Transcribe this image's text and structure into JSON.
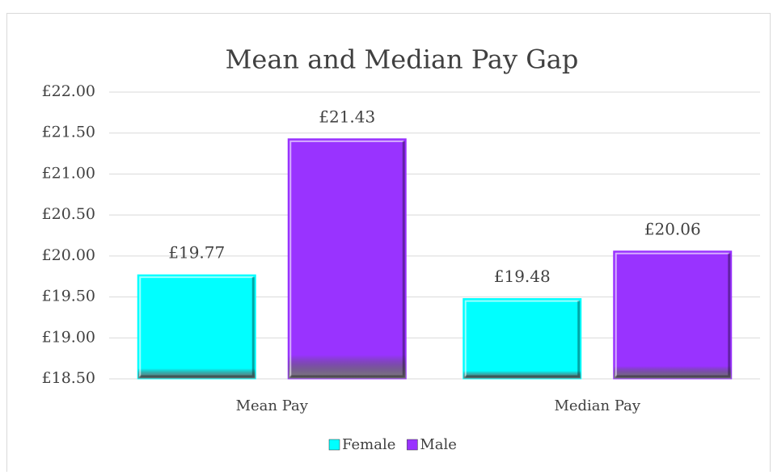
{
  "chart_data": {
    "type": "bar",
    "title": "Mean and Median Pay Gap",
    "categories": [
      "Mean Pay",
      "Median Pay"
    ],
    "series": [
      {
        "name": "Female",
        "color": "#00ffff",
        "values": [
          19.77,
          19.48
        ],
        "value_labels": [
          "£19.77",
          "£19.48"
        ]
      },
      {
        "name": "Male",
        "color": "#9933ff",
        "values": [
          21.43,
          20.06
        ],
        "value_labels": [
          "£21.43",
          "£20.06"
        ]
      }
    ],
    "ylim": [
      18.5,
      22
    ],
    "yticks": [
      {
        "value": 18.5,
        "label": "£18.50"
      },
      {
        "value": 19,
        "label": "£19.00"
      },
      {
        "value": 19.5,
        "label": "£19.50"
      },
      {
        "value": 20,
        "label": "£20.00"
      },
      {
        "value": 20.5,
        "label": "£20.50"
      },
      {
        "value": 21,
        "label": "£21.00"
      },
      {
        "value": 21.5,
        "label": "£21.50"
      },
      {
        "value": 22,
        "label": "£22.00"
      }
    ],
    "grid": true,
    "legend": "bottom"
  }
}
